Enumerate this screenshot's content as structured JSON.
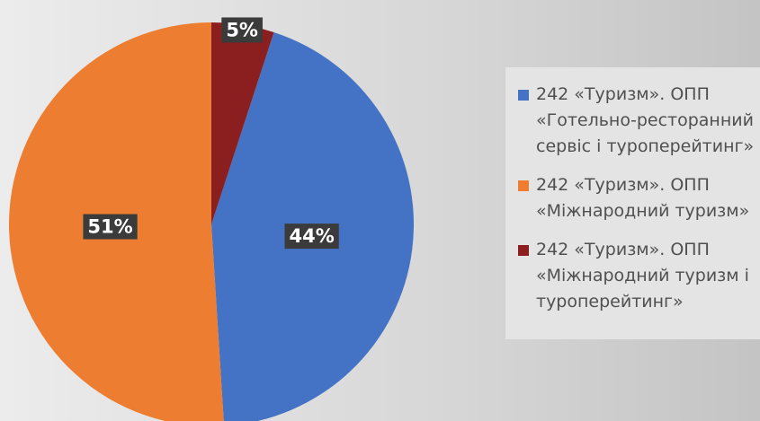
{
  "chart_data": {
    "type": "pie",
    "categories": [
      "242 «Туризм». ОПП «Готельно-ресторанний сервіс і туроперейтинг»",
      "242 «Туризм». ОПП «Міжнародний туризм»",
      "242 «Туризм». ОПП «Міжнародний туризм і туроперейтинг»"
    ],
    "values": [
      44,
      51,
      5
    ],
    "value_labels": [
      "44%",
      "51%",
      "5%"
    ],
    "colors": [
      "#4472c4",
      "#ed7d31",
      "#8b1e1e"
    ],
    "legend": "right"
  }
}
